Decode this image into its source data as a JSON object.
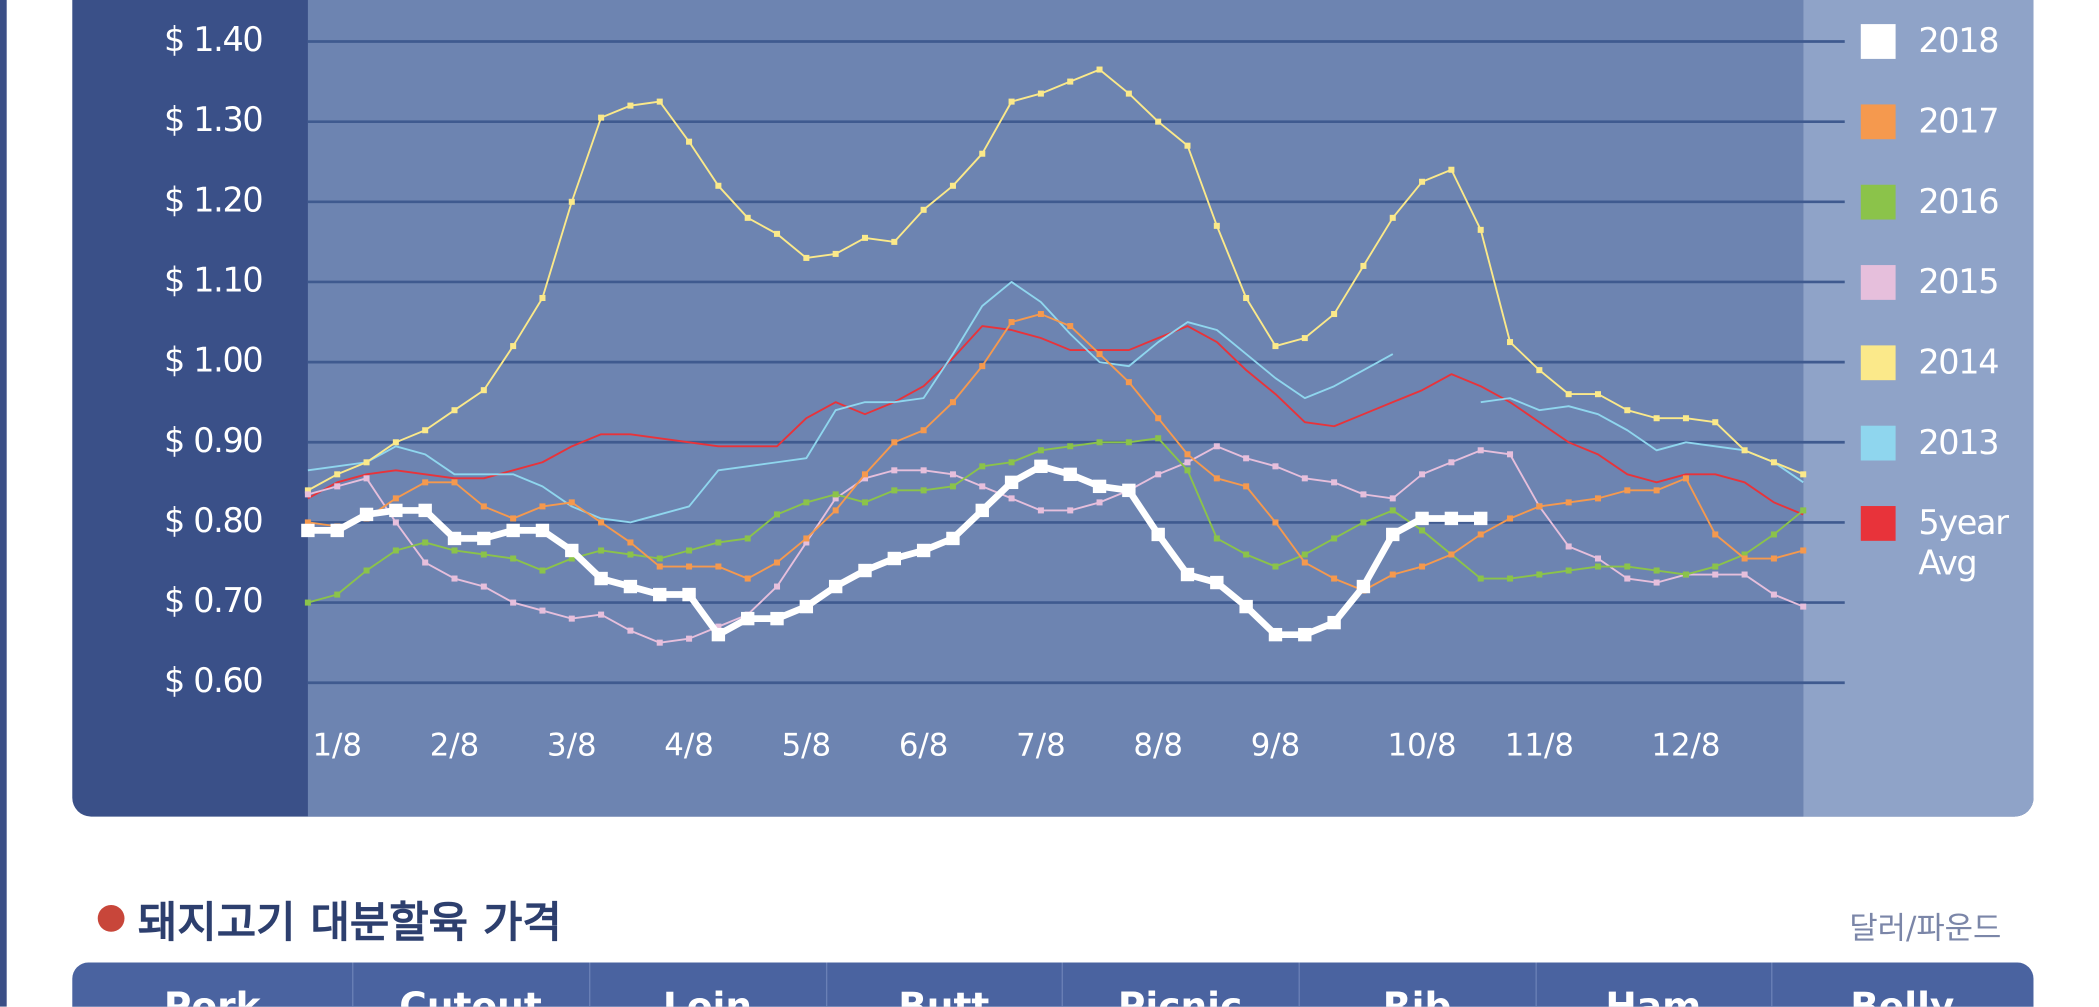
{
  "chart_data": {
    "type": "line",
    "categories": [
      null,
      "1/8",
      null,
      null,
      null,
      "2/8",
      null,
      null,
      null,
      "3/8",
      null,
      null,
      null,
      "4/8",
      null,
      null,
      null,
      "5/8",
      null,
      null,
      null,
      "6/8",
      null,
      null,
      null,
      "7/8",
      null,
      null,
      null,
      "8/8",
      null,
      null,
      null,
      "9/8",
      null,
      null,
      null,
      null,
      "10/8",
      null,
      null,
      null,
      "11/8",
      null,
      null,
      null,
      null,
      "12/8",
      null,
      null,
      null,
      null
    ],
    "ylim": [
      0.6,
      1.4
    ],
    "yticks": [
      {
        "value": 0.6,
        "label": "$ 0.60"
      },
      {
        "value": 0.7,
        "label": "$ 0.70"
      },
      {
        "value": 0.8,
        "label": "$ 0.80"
      },
      {
        "value": 0.9,
        "label": "$ 0.90"
      },
      {
        "value": 1.0,
        "label": "$ 1.00"
      },
      {
        "value": 1.1,
        "label": "$ 1.10"
      },
      {
        "value": 1.2,
        "label": "$ 1.20"
      },
      {
        "value": 1.3,
        "label": "$ 1.30"
      },
      {
        "value": 1.4,
        "label": "$ 1.40"
      }
    ],
    "grid": true,
    "legend": "right",
    "series": [
      {
        "name": "2018",
        "color": "#ffffff",
        "markers": true,
        "values": [
          0.79,
          0.79,
          0.81,
          0.815,
          0.815,
          0.78,
          0.78,
          0.79,
          0.79,
          0.765,
          0.73,
          0.72,
          0.71,
          0.71,
          0.66,
          0.68,
          0.68,
          0.695,
          0.72,
          0.74,
          0.755,
          0.765,
          0.78,
          0.815,
          0.85,
          0.87,
          0.86,
          0.845,
          0.84,
          0.785,
          0.735,
          0.725,
          0.695,
          0.66,
          0.66,
          0.675,
          0.72,
          0.785,
          0.805,
          0.805,
          0.805,
          null,
          null,
          null,
          null,
          null,
          null,
          null,
          null,
          null,
          null,
          null
        ]
      },
      {
        "name": "2017",
        "color": "#f5994e",
        "markers": true,
        "values": [
          0.8,
          0.795,
          0.805,
          0.83,
          0.85,
          0.85,
          0.82,
          0.805,
          0.82,
          0.825,
          0.8,
          0.775,
          0.745,
          0.745,
          0.745,
          0.73,
          0.75,
          0.78,
          0.815,
          0.86,
          0.9,
          0.915,
          0.95,
          0.995,
          1.05,
          1.06,
          1.045,
          1.01,
          0.975,
          0.93,
          0.885,
          0.855,
          0.845,
          0.8,
          0.75,
          0.73,
          0.715,
          0.735,
          0.745,
          0.76,
          0.785,
          0.805,
          0.82,
          0.825,
          0.83,
          0.84,
          0.84,
          0.855,
          0.785,
          0.755,
          0.755,
          0.765
        ]
      },
      {
        "name": "2016",
        "color": "#8bc34a",
        "markers": true,
        "values": [
          0.7,
          0.71,
          0.74,
          0.765,
          0.775,
          0.765,
          0.76,
          0.755,
          0.74,
          0.755,
          0.765,
          0.76,
          0.755,
          0.765,
          0.775,
          0.78,
          0.81,
          0.825,
          0.835,
          0.825,
          0.84,
          0.84,
          0.845,
          0.87,
          0.875,
          0.89,
          0.895,
          0.9,
          0.9,
          0.905,
          0.865,
          0.78,
          0.76,
          0.745,
          0.76,
          0.78,
          0.8,
          0.815,
          0.79,
          0.76,
          0.73,
          0.73,
          0.735,
          0.74,
          0.745,
          0.745,
          0.74,
          0.735,
          0.745,
          0.76,
          0.785,
          0.815
        ]
      },
      {
        "name": "2015",
        "color": "#e6bfdc",
        "markers": true,
        "values": [
          0.835,
          0.845,
          0.855,
          0.8,
          0.75,
          0.73,
          0.72,
          0.7,
          0.69,
          0.68,
          0.685,
          0.665,
          0.65,
          0.655,
          0.67,
          0.685,
          0.72,
          0.775,
          0.83,
          0.855,
          0.865,
          0.865,
          0.86,
          0.845,
          0.83,
          0.815,
          0.815,
          0.825,
          0.84,
          0.86,
          0.875,
          0.895,
          0.88,
          0.87,
          0.855,
          0.85,
          0.835,
          0.83,
          0.86,
          0.875,
          0.89,
          0.885,
          0.82,
          0.77,
          0.755,
          0.73,
          0.725,
          0.735,
          0.735,
          0.735,
          0.71,
          0.695
        ]
      },
      {
        "name": "2014",
        "color": "#fbe98a",
        "markers": true,
        "values": [
          0.84,
          0.86,
          0.875,
          0.9,
          0.915,
          0.94,
          0.965,
          1.02,
          1.08,
          1.2,
          1.305,
          1.32,
          1.325,
          1.275,
          1.22,
          1.18,
          1.16,
          1.13,
          1.135,
          1.155,
          1.15,
          1.19,
          1.22,
          1.26,
          1.325,
          1.335,
          1.35,
          1.365,
          1.335,
          1.3,
          1.27,
          1.17,
          1.08,
          1.02,
          1.03,
          1.06,
          1.12,
          1.18,
          1.225,
          1.24,
          1.165,
          1.025,
          0.99,
          0.96,
          0.96,
          0.94,
          0.93,
          0.93,
          0.925,
          0.89,
          0.875,
          0.86
        ]
      },
      {
        "name": "2013",
        "color": "#8fd6ee",
        "markers": false,
        "values": [
          0.865,
          0.87,
          0.875,
          0.895,
          0.885,
          0.86,
          0.86,
          0.86,
          0.845,
          0.82,
          0.805,
          0.8,
          0.81,
          0.82,
          0.865,
          0.87,
          0.875,
          0.88,
          0.94,
          0.95,
          0.95,
          0.955,
          1.01,
          1.07,
          1.1,
          1.075,
          1.035,
          1.0,
          0.995,
          1.025,
          1.05,
          1.04,
          1.01,
          0.98,
          0.955,
          0.97,
          0.99,
          1.01,
          null,
          null,
          0.95,
          0.955,
          0.94,
          0.945,
          0.935,
          0.915,
          0.89,
          0.9,
          0.895,
          0.89,
          0.875,
          0.85
        ]
      },
      {
        "name": "5year Avg",
        "color": "#e8333a",
        "markers": false,
        "values": [
          0.83,
          0.85,
          0.86,
          0.865,
          0.86,
          0.855,
          0.855,
          0.865,
          0.875,
          0.895,
          0.91,
          0.91,
          0.905,
          0.9,
          0.895,
          0.895,
          0.895,
          0.93,
          0.95,
          0.935,
          0.95,
          0.97,
          1.005,
          1.045,
          1.04,
          1.03,
          1.015,
          1.015,
          1.015,
          1.03,
          1.045,
          1.025,
          0.99,
          0.96,
          0.925,
          0.92,
          0.935,
          0.95,
          0.965,
          0.985,
          0.97,
          0.95,
          0.925,
          0.9,
          0.885,
          0.86,
          0.85,
          0.86,
          0.86,
          0.85,
          0.825,
          0.81
        ]
      }
    ]
  },
  "section": {
    "title": "돼지고기 대분할육 가격",
    "unit": "달러/파운드",
    "columns": [
      "Pork",
      "Cutout",
      "Loin",
      "Butt",
      "Picnic",
      "Rib",
      "Ham",
      "Belly"
    ]
  }
}
